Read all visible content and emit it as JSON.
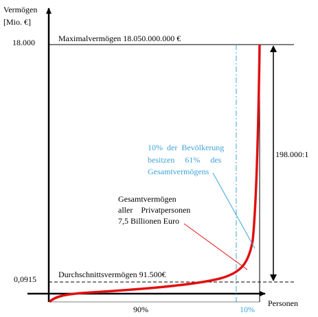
{
  "y_axis": {
    "label_lines": [
      "Vermögen",
      "[Mio.  €]"
    ],
    "top_label": "18.000",
    "bottom_label": "0,0915"
  },
  "x_axis": {
    "label": "Personen",
    "left_share": "90%",
    "right_share": "10%"
  },
  "lines": {
    "max": "Maximalvermögen  18.050.000.000 €",
    "average": "Durchschnittsvermögen  91.500€",
    "ratio": "198.000:1"
  },
  "notes": {
    "top_share": [
      "10%  der  Bevölkerung",
      "besitzen     61%     des",
      "Gesamtvermögens"
    ],
    "total": [
      "Gesamtvermögen",
      "aller    Privatpersonen",
      "7,5 Billionen Euro"
    ]
  }
}
